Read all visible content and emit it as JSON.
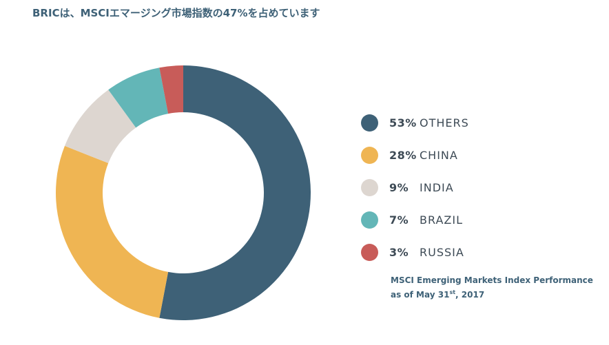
{
  "title": "BRICは、MSCIエマージング市場指数の47%を占めています",
  "chart_data": {
    "type": "pie",
    "donut": true,
    "title": "BRICは、MSCIエマージング市場指数の47%を占めています",
    "series": [
      {
        "name": "OTHERS",
        "label": "53%",
        "value": 53,
        "color": "#3e6177"
      },
      {
        "name": "CHINA",
        "label": "28%",
        "value": 28,
        "color": "#efb553"
      },
      {
        "name": "INDIA",
        "label": "9%",
        "value": 9,
        "color": "#ddd6d0"
      },
      {
        "name": "BRAZIL",
        "label": "7%",
        "value": 7,
        "color": "#63b6b7"
      },
      {
        "name": "RUSSIA",
        "label": "3%",
        "value": 3,
        "color": "#c85c59"
      }
    ],
    "legend_position": "right"
  },
  "caption": {
    "line1": "MSCI Emerging Markets Index Performance",
    "line2_prefix": "as of May 31",
    "line2_sup": "st",
    "line2_suffix": ", 2017"
  }
}
